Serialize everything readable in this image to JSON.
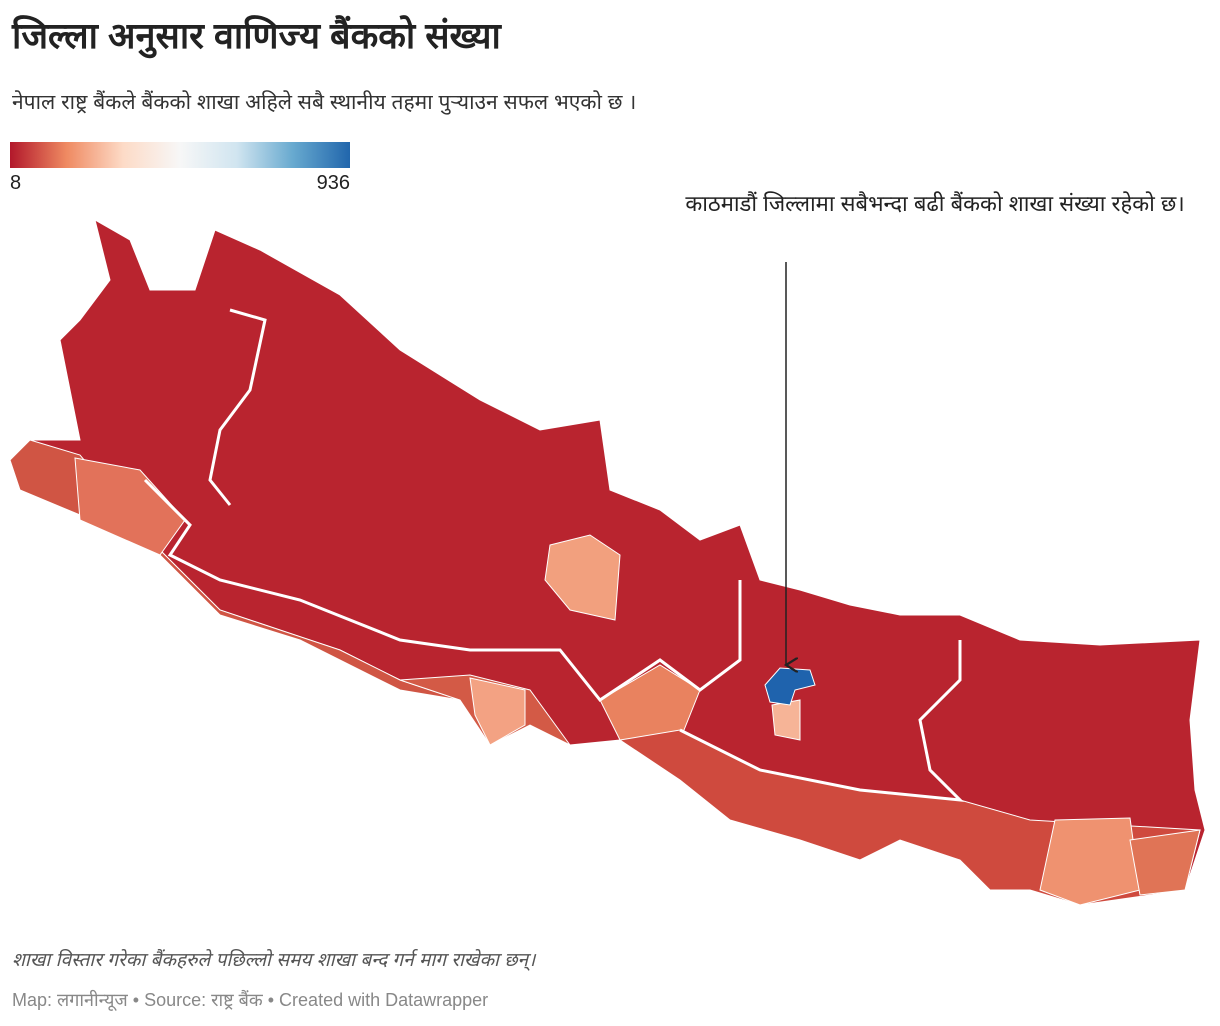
{
  "header": {
    "title": "जिल्ला अनुसार वाणिज्य बैंकको संख्या",
    "subtitle": "नेपाल राष्ट्र बैंकले बैंकको शाखा अहिले सबै स्थानीय तहमा पुऱ्याउन सफल भएको छ ।"
  },
  "legend": {
    "min": 8,
    "max": 936,
    "colors": [
      "#b2182b",
      "#ef8a62",
      "#fddbc7",
      "#f7f7f7",
      "#d1e5f0",
      "#67a9cf",
      "#2166ac"
    ]
  },
  "annotation": "काठमाडौं जिल्लामा सबैभन्दा बढी बैंकको शाखा संख्या रहेको छ।",
  "note": "शाखा विस्तार गरेका बैंकहरुले पछिल्लो समय शाखा बन्द गर्न माग राखेका छन्।",
  "footer": "Map: लगानीन्यूज • Source: राष्ट्र बैंक • Created with Datawrapper"
}
